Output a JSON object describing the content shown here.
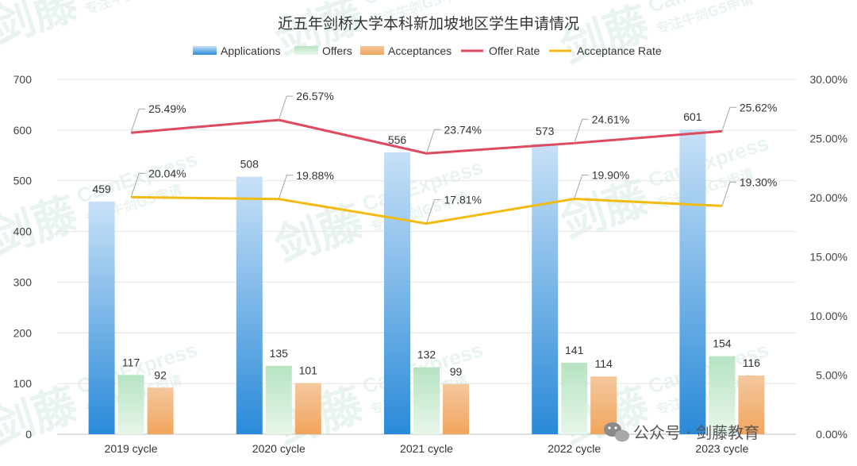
{
  "chart_data": {
    "type": "bar",
    "title": "近五年剑桥大学本科新加坡地区学生申请情况",
    "categories": [
      "2019 cycle",
      "2020 cycle",
      "2021 cycle",
      "2022 cycle",
      "2023 cycle"
    ],
    "series": [
      {
        "name": "Applications",
        "kind": "bar",
        "axis": "left",
        "values": [
          459,
          508,
          556,
          573,
          601
        ]
      },
      {
        "name": "Offers",
        "kind": "bar",
        "axis": "left",
        "values": [
          117,
          135,
          132,
          141,
          154
        ]
      },
      {
        "name": "Acceptances",
        "kind": "bar",
        "axis": "left",
        "values": [
          92,
          101,
          99,
          114,
          116
        ]
      },
      {
        "name": "Offer Rate",
        "kind": "line",
        "axis": "right",
        "values": [
          25.49,
          26.57,
          23.74,
          24.61,
          25.62
        ],
        "labels": [
          "25.49%",
          "26.57%",
          "23.74%",
          "24.61%",
          "25.62%"
        ]
      },
      {
        "name": "Acceptance Rate",
        "kind": "line",
        "axis": "right",
        "values": [
          20.04,
          19.88,
          17.81,
          19.9,
          19.3
        ],
        "labels": [
          "20.04%",
          "19.88%",
          "17.81%",
          "19.90%",
          "19.30%"
        ]
      }
    ],
    "y_left": {
      "min": 0,
      "max": 700,
      "ticks": [
        "0",
        "100",
        "200",
        "300",
        "400",
        "500",
        "600",
        "700"
      ]
    },
    "y_right": {
      "min": 0,
      "max": 30,
      "ticks": [
        "0.00%",
        "5.00%",
        "10.00%",
        "15.00%",
        "20.00%",
        "25.00%",
        "30.00%"
      ]
    },
    "legend_position": "top",
    "grid": true
  },
  "colors": {
    "applications_top": "#c8e1f7",
    "applications_bottom": "#2a8ad8",
    "offers_top": "#b7e3c2",
    "offers_bottom": "#e7f6ea",
    "acceptances_top": "#f3c89e",
    "acceptances_bottom": "#f2a55d",
    "offer_rate": "#de4a60",
    "acceptance_rate": "#f2bb14"
  },
  "watermark": {
    "cn": "剑藤",
    "en": "CamExpress",
    "sub": "专注牛剑G5申请"
  },
  "footer": {
    "icon": "wechat-icon",
    "text": "公众号 · 剑藤教育"
  }
}
